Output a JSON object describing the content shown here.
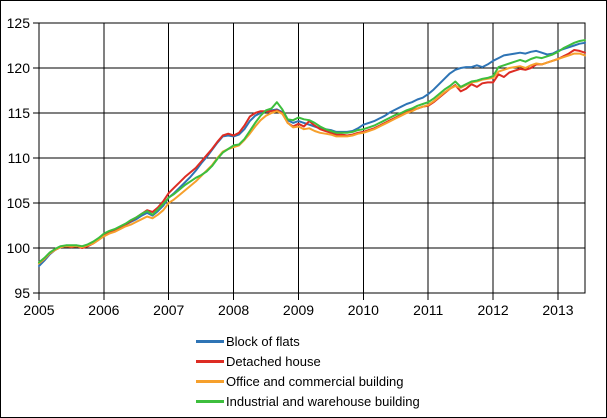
{
  "chart_data": {
    "type": "line",
    "title": "",
    "xlabel": "",
    "ylabel": "",
    "ylim": [
      95,
      125
    ],
    "y_ticks": [
      95,
      100,
      105,
      110,
      115,
      120,
      125
    ],
    "x_tick_labels": [
      "2005",
      "2006",
      "2007",
      "2008",
      "2009",
      "2010",
      "2011",
      "2012",
      "2013"
    ],
    "x_start": "2005-01",
    "x_end": "2013-06",
    "x_frequency": "monthly",
    "grid": "both",
    "grid_color": "#000000",
    "legend_position": "bottom-left",
    "series": [
      {
        "name": "Block of flats",
        "color": "#2E74B5",
        "values": [
          98.0,
          98.6,
          99.3,
          99.8,
          100.1,
          100.2,
          100.2,
          100.2,
          100.1,
          100.3,
          100.6,
          101.0,
          101.5,
          101.8,
          102.0,
          102.3,
          102.6,
          102.9,
          103.2,
          103.6,
          103.9,
          103.6,
          104.1,
          104.7,
          105.6,
          106.1,
          106.7,
          107.3,
          107.9,
          108.6,
          109.4,
          110.1,
          110.9,
          111.7,
          112.4,
          112.5,
          112.4,
          112.6,
          113.2,
          114.1,
          114.7,
          115.0,
          115.2,
          115.3,
          115.4,
          115.1,
          114.2,
          113.9,
          114.1,
          113.9,
          113.7,
          113.5,
          113.3,
          113.2,
          113.1,
          112.9,
          112.9,
          112.9,
          113.0,
          113.3,
          113.7,
          113.9,
          114.1,
          114.4,
          114.7,
          115.1,
          115.4,
          115.7,
          116.0,
          116.2,
          116.5,
          116.7,
          117.1,
          117.6,
          118.2,
          118.8,
          119.4,
          119.8,
          120.0,
          120.1,
          120.1,
          120.3,
          120.1,
          120.4,
          120.8,
          121.1,
          121.4,
          121.5,
          121.6,
          121.7,
          121.6,
          121.8,
          121.9,
          121.7,
          121.5,
          121.6,
          121.9,
          122.1,
          122.3,
          122.5,
          122.7,
          122.8
        ]
      },
      {
        "name": "Detached house",
        "color": "#DD2C23",
        "values": [
          98.3,
          98.8,
          99.4,
          99.8,
          100.1,
          100.2,
          100.1,
          100.2,
          100.0,
          100.2,
          100.5,
          100.9,
          101.4,
          101.7,
          101.9,
          102.2,
          102.6,
          103.0,
          103.4,
          103.8,
          104.2,
          104.0,
          104.5,
          105.2,
          106.1,
          106.7,
          107.3,
          107.9,
          108.4,
          108.9,
          109.6,
          110.3,
          111.0,
          111.8,
          112.5,
          112.7,
          112.5,
          112.8,
          113.6,
          114.6,
          115.0,
          115.2,
          115.2,
          115.2,
          115.3,
          115.0,
          113.9,
          113.5,
          113.8,
          113.5,
          114.1,
          113.6,
          113.2,
          113.0,
          112.8,
          112.6,
          112.6,
          112.5,
          112.6,
          112.8,
          112.9,
          113.1,
          113.3,
          113.6,
          113.9,
          114.2,
          114.5,
          114.8,
          115.1,
          115.3,
          115.5,
          115.7,
          115.8,
          116.2,
          116.7,
          117.2,
          117.7,
          118.1,
          117.4,
          117.7,
          118.2,
          117.9,
          118.3,
          118.4,
          118.4,
          119.3,
          119.0,
          119.5,
          119.7,
          119.9,
          119.8,
          120.0,
          120.4,
          120.4,
          120.6,
          120.8,
          121.0,
          121.3,
          121.6,
          122.0,
          121.9,
          121.7
        ]
      },
      {
        "name": "Office and commercial building",
        "color": "#F6A02C",
        "values": [
          98.3,
          98.8,
          99.4,
          99.8,
          100.1,
          100.2,
          100.2,
          100.2,
          100.1,
          100.3,
          100.5,
          100.9,
          101.3,
          101.6,
          101.8,
          102.1,
          102.4,
          102.6,
          102.9,
          103.2,
          103.5,
          103.3,
          103.7,
          104.2,
          105.0,
          105.4,
          105.9,
          106.4,
          106.9,
          107.4,
          108.0,
          108.6,
          109.2,
          110.0,
          110.7,
          111.0,
          111.2,
          111.4,
          112.0,
          112.7,
          113.5,
          114.2,
          114.7,
          115.0,
          115.2,
          114.9,
          113.9,
          113.4,
          113.5,
          113.2,
          113.3,
          113.0,
          112.8,
          112.7,
          112.6,
          112.4,
          112.4,
          112.4,
          112.5,
          112.7,
          112.8,
          113.0,
          113.2,
          113.5,
          113.8,
          114.1,
          114.4,
          114.7,
          115.0,
          115.2,
          115.5,
          115.7,
          115.9,
          116.3,
          116.8,
          117.3,
          117.7,
          118.0,
          117.8,
          118.1,
          118.4,
          118.5,
          118.7,
          118.8,
          118.9,
          119.6,
          119.8,
          120.0,
          120.1,
          120.2,
          120.0,
          120.3,
          120.5,
          120.4,
          120.6,
          120.8,
          121.0,
          121.2,
          121.4,
          121.6,
          121.6,
          121.4
        ]
      },
      {
        "name": "Industrial and warehouse building",
        "color": "#3DBE3D",
        "values": [
          98.4,
          98.9,
          99.5,
          99.9,
          100.2,
          100.3,
          100.3,
          100.3,
          100.2,
          100.4,
          100.7,
          101.1,
          101.6,
          101.9,
          102.1,
          102.4,
          102.7,
          103.1,
          103.4,
          103.8,
          104.1,
          103.7,
          104.3,
          104.9,
          105.6,
          106.0,
          106.5,
          107.0,
          107.4,
          107.8,
          108.1,
          108.5,
          109.1,
          109.9,
          110.6,
          111.0,
          111.4,
          111.5,
          112.1,
          113.0,
          113.9,
          114.7,
          115.3,
          115.5,
          116.2,
          115.4,
          114.3,
          114.2,
          114.5,
          114.3,
          114.2,
          113.9,
          113.5,
          113.2,
          113.0,
          112.8,
          112.8,
          112.8,
          112.9,
          113.1,
          113.2,
          113.4,
          113.6,
          113.9,
          114.2,
          114.5,
          114.8,
          115.0,
          115.3,
          115.5,
          115.8,
          116.0,
          116.2,
          116.6,
          117.1,
          117.6,
          118.0,
          118.5,
          117.9,
          118.2,
          118.5,
          118.6,
          118.8,
          118.9,
          119.1,
          120.1,
          120.3,
          120.5,
          120.7,
          120.9,
          120.7,
          121.0,
          121.2,
          121.1,
          121.3,
          121.5,
          121.8,
          122.2,
          122.5,
          122.8,
          123.0,
          123.1
        ]
      }
    ]
  }
}
